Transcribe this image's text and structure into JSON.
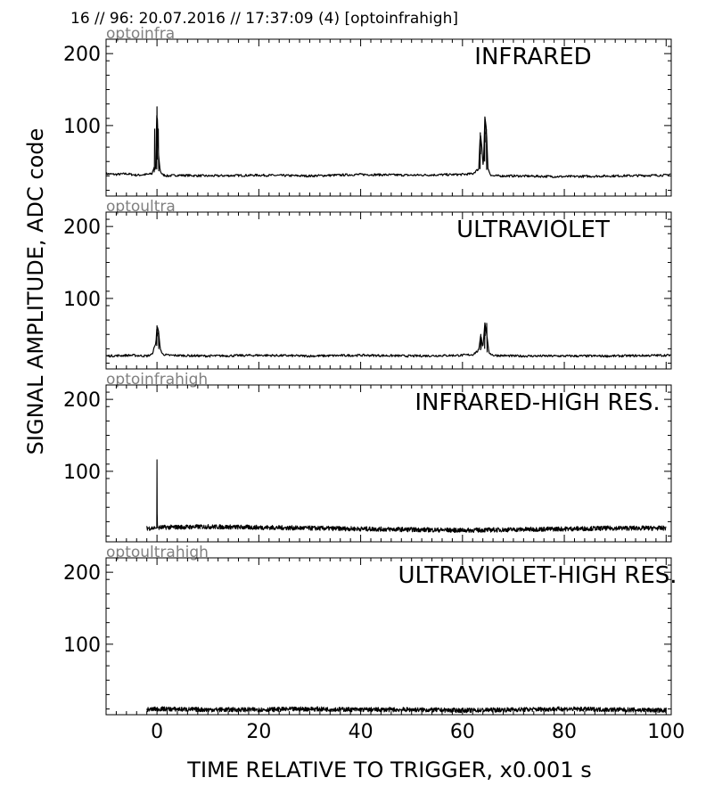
{
  "figure": {
    "title": "16 // 96:   20.07.2016 // 17:37:09 (4)  [optoinfrahigh]",
    "xlabel": "TIME RELATIVE TO TRIGGER,   x0.001 s",
    "ylabel": "SIGNAL AMPLITUDE,  ADC code"
  },
  "chart_data": [
    {
      "type": "line",
      "name": "optoinfra",
      "label": "INFRARED",
      "xlim": [
        -10,
        101
      ],
      "ylim": [
        2,
        220
      ],
      "xticks": [
        0,
        20,
        40,
        60,
        80,
        100
      ],
      "yticks": [
        100,
        200
      ],
      "x_tick_labels_shown": false,
      "series": [
        {
          "x": [
            -10,
            -8,
            -6,
            -4,
            -2,
            -1,
            -0.5,
            -0.3,
            0,
            0.3,
            0.6,
            1,
            2,
            4,
            10,
            20,
            30,
            40,
            50,
            60,
            62,
            63.2,
            63.5,
            63.8,
            64.1,
            64.4,
            64.7,
            65.0,
            65.5,
            66,
            70,
            80,
            90,
            100,
            101
          ],
          "y": [
            33,
            32,
            33,
            31,
            32,
            33,
            43,
            35,
            126,
            60,
            38,
            32,
            30,
            31,
            30,
            31,
            30,
            32,
            31,
            32,
            33,
            40,
            90,
            70,
            40,
            112,
            95,
            40,
            32,
            30,
            30,
            29,
            30,
            31,
            33
          ]
        }
      ]
    },
    {
      "type": "line",
      "name": "optoultra",
      "label": "ULTRAVIOLET",
      "xlim": [
        -10,
        101
      ],
      "ylim": [
        2,
        220
      ],
      "xticks": [
        0,
        20,
        40,
        60,
        80,
        100
      ],
      "yticks": [
        100,
        200
      ],
      "x_tick_labels_shown": false,
      "series": [
        {
          "x": [
            -10,
            -5,
            -2,
            -1,
            -0.5,
            -0.2,
            0,
            0.3,
            0.6,
            1,
            2,
            10,
            20,
            30,
            40,
            50,
            60,
            62,
            63.2,
            63.6,
            64.0,
            64.4,
            64.8,
            65.2,
            66,
            70,
            80,
            90,
            100,
            101
          ],
          "y": [
            20,
            21,
            20,
            22,
            32,
            38,
            62,
            55,
            32,
            23,
            21,
            20,
            21,
            20,
            21,
            20,
            21,
            22,
            28,
            50,
            30,
            66,
            48,
            25,
            21,
            20,
            20,
            20,
            21,
            21
          ]
        }
      ]
    },
    {
      "type": "line",
      "name": "optoinfrahigh",
      "label": "INFRARED-HIGH RES.",
      "xlim": [
        -10,
        101
      ],
      "ylim": [
        2,
        220
      ],
      "xticks": [
        0,
        20,
        40,
        60,
        80,
        100
      ],
      "yticks": [
        100,
        200
      ],
      "x_tick_labels_shown": false,
      "series": [
        {
          "x": [
            -2,
            0,
            0,
            0.05,
            10,
            20,
            30,
            40,
            50,
            60,
            70,
            80,
            90,
            100
          ],
          "y": [
            21,
            21,
            116,
            22,
            23,
            22,
            21,
            20,
            19,
            18,
            19,
            20,
            21,
            21
          ]
        }
      ]
    },
    {
      "type": "line",
      "name": "optoultrahigh",
      "label": "ULTRAVIOLET-HIGH RES.",
      "xlim": [
        -10,
        101
      ],
      "ylim": [
        2,
        220
      ],
      "xticks": [
        0,
        20,
        40,
        60,
        80,
        100
      ],
      "yticks": [
        100,
        200
      ],
      "x_tick_labels_shown": true,
      "series": [
        {
          "x": [
            -2,
            0,
            10,
            20,
            30,
            40,
            50,
            60,
            70,
            80,
            90,
            100
          ],
          "y": [
            9,
            10,
            9,
            9,
            10,
            9,
            9,
            8,
            9,
            10,
            9,
            8
          ]
        }
      ]
    }
  ]
}
